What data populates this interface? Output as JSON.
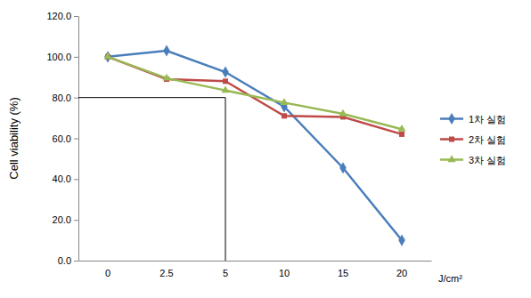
{
  "chart_data": {
    "type": "line",
    "y_label": "Cell viability (%)",
    "x_label": "J/cm²",
    "categories": [
      "0",
      "2.5",
      "5",
      "10",
      "15",
      "20"
    ],
    "series": [
      {
        "name": "1차 실험",
        "color": "#4a7ebb",
        "marker": "diamond",
        "values": [
          100,
          103,
          92.5,
          75.5,
          45.5,
          10
        ]
      },
      {
        "name": "2차 실험",
        "color": "#be4b48",
        "marker": "square",
        "values": [
          100,
          89,
          88,
          71,
          70.5,
          62
        ]
      },
      {
        "name": "3차 실험",
        "color": "#98b954",
        "marker": "triangle",
        "values": [
          100,
          89.5,
          83.5,
          77.5,
          72,
          64.5
        ]
      }
    ],
    "ylim": [
      0,
      120
    ],
    "yticks": [
      {
        "value": 0,
        "label": "0.0"
      },
      {
        "value": 20,
        "label": "20.0"
      },
      {
        "value": 40,
        "label": "40.0"
      },
      {
        "value": 60,
        "label": "60.0"
      },
      {
        "value": 80,
        "label": "80.0"
      },
      {
        "value": 100,
        "label": "100.0"
      },
      {
        "value": 120,
        "label": "120.0"
      }
    ],
    "threshold": {
      "x": "5",
      "y": 80
    },
    "grid": false,
    "legend": "right"
  }
}
